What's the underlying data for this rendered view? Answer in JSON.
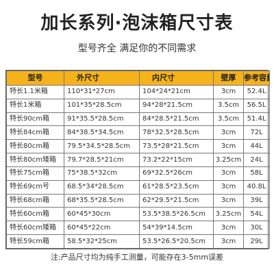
{
  "title": "加长系列·泡沫箱尺寸表",
  "subtitle": "型号齐全 满足你的不同需求",
  "table": {
    "headers": [
      "型号",
      "外尺寸",
      "内尺寸",
      "壁厚",
      "参考容量"
    ],
    "rows": [
      [
        "特长1.1米箱",
        "110*31*27cm",
        "104*24*21cm",
        "3cm",
        "52.4L"
      ],
      [
        "特长1米箱",
        "101*35*28.5cm",
        "94*28*21.5cm",
        "3.5cm",
        "56.5L"
      ],
      [
        "特长90cm箱",
        "91*35.5*28.5cm",
        "84*28.5*21.5cm",
        "3.5cm",
        "51.4L"
      ],
      [
        "特长84cm箱",
        "84*38.5*34.5cm",
        "78*32.5*28.5cm",
        "3cm",
        "72L"
      ],
      [
        "特长80cm箱",
        "79.5*34.5*28.5cm",
        "73.5*28*21.5cm",
        "3cm",
        "44L"
      ],
      [
        "特长80cm矮箱",
        "79.7*28.5*21cm",
        "73.2*22*15cm",
        "3.25cm",
        "24L"
      ],
      [
        "特长75cm箱",
        "75*38.5*32cm",
        "69*32.5*26cm",
        "3cm",
        "58L"
      ],
      [
        "特长69cm号",
        "68.5*34*28.5cm",
        "61*28.5*23.5cm",
        "3cm",
        "40.8L"
      ],
      [
        "特长68cm箱",
        "68*35.5*28.5cm",
        "62*29.5*21.5cm",
        "3cm",
        "39L"
      ],
      [
        "特长60cm箱",
        "60*45*30cm",
        "53.5*38.5*26.5cm",
        "3.25cm",
        "54L"
      ],
      [
        "特长60cm矮箱",
        "60*45*22cm",
        "54*39*14.5cm",
        "3cm",
        "30L"
      ],
      [
        "特长59cm箱",
        "58.5*32*25cm",
        "53.5*26.5*20.5cm",
        "3cm",
        "29L"
      ]
    ]
  },
  "note": "注:产品尺寸均为纯手工测量，可能存在3-5mm误差",
  "colors": {
    "header_bg": "#f5b21a",
    "text": "#333333",
    "title": "#222222",
    "border": "#777777"
  }
}
